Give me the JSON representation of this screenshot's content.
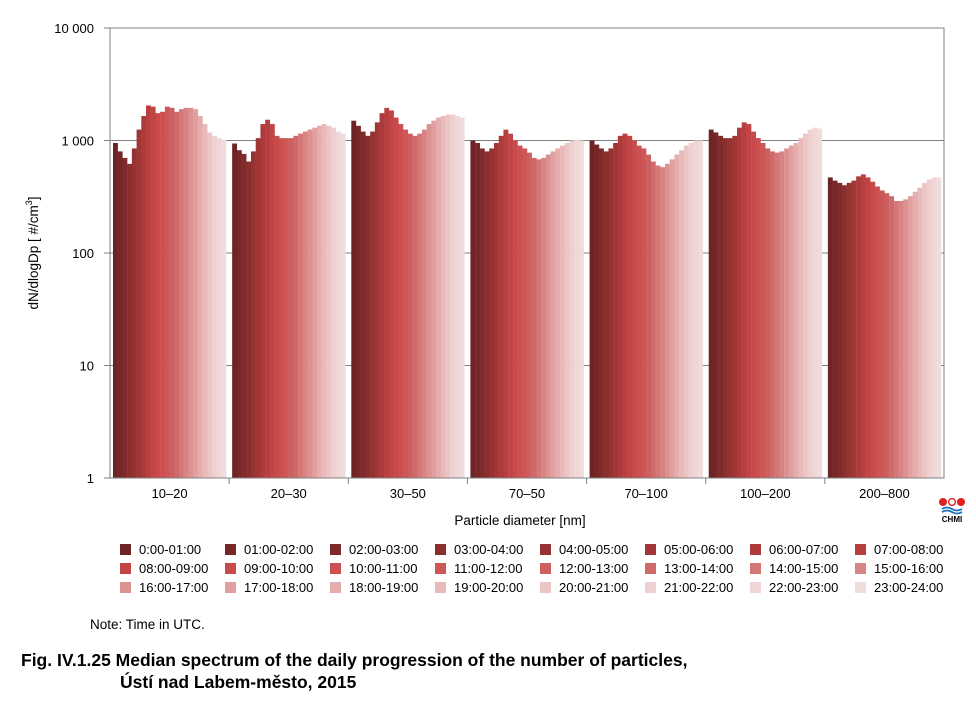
{
  "chart_data": {
    "type": "bar",
    "ylabel": "dN/dlogDp [ #/cm³]",
    "xlabel": "Particle diameter [nm]",
    "yscale": "log",
    "ylim": [
      1,
      10000
    ],
    "yticks": [
      1,
      10,
      100,
      1000,
      10000
    ],
    "ytick_labels": [
      "1",
      "10",
      "100",
      "1 000",
      "10 000"
    ],
    "grid": "horizontal",
    "legend_position": "bottom",
    "categories": [
      "10–20",
      "20–30",
      "30–50",
      "70–50",
      "70–100",
      "100–200",
      "200–800"
    ],
    "series_names": [
      "0:00-01:00",
      "01:00-02:00",
      "02:00-03:00",
      "03:00-04:00",
      "04:00-05:00",
      "05:00-06:00",
      "06:00-07:00",
      "07:00-08:00",
      "08:00-09:00",
      "09:00-10:00",
      "10:00-11:00",
      "11:00-12:00",
      "12:00-13:00",
      "13:00-14:00",
      "14:00-15:00",
      "15:00-16:00",
      "16:00-17:00",
      "17:00-18:00",
      "18:00-19:00",
      "19:00-20:00",
      "20:00-21:00",
      "21:00-22:00",
      "22:00-23:00",
      "23:00-24:00"
    ],
    "series_colors": [
      "#6e2424",
      "#772727",
      "#802b2b",
      "#8a2e2e",
      "#953232",
      "#a03636",
      "#ad3b3b",
      "#b83f3f",
      "#c24444",
      "#c84a4a",
      "#cd4f4f",
      "#cd5757",
      "#cc5f5f",
      "#d06a6a",
      "#d57777",
      "#d98484",
      "#dd9292",
      "#e19f9f",
      "#e5adad",
      "#e9baba",
      "#ecc5c5",
      "#efd0d0",
      "#f0d7d7",
      "#efdcdc"
    ],
    "values": [
      [
        950,
        800,
        700,
        620,
        850,
        1250,
        1650,
        2050,
        2000,
        1750,
        1800,
        2000,
        1950,
        1800,
        1900,
        1950,
        1950,
        1900,
        1650,
        1400,
        1180,
        1100,
        1050,
        1020
      ],
      [
        940,
        820,
        760,
        650,
        800,
        1050,
        1400,
        1530,
        1400,
        1100,
        1050,
        1050,
        1050,
        1100,
        1150,
        1200,
        1250,
        1300,
        1350,
        1400,
        1350,
        1300,
        1200,
        1150
      ],
      [
        1500,
        1350,
        1200,
        1100,
        1200,
        1450,
        1750,
        1950,
        1850,
        1600,
        1400,
        1250,
        1150,
        1100,
        1150,
        1250,
        1400,
        1500,
        1600,
        1650,
        1700,
        1700,
        1650,
        1600
      ],
      [
        1000,
        950,
        850,
        800,
        850,
        950,
        1100,
        1250,
        1150,
        1000,
        900,
        850,
        780,
        700,
        680,
        700,
        750,
        800,
        850,
        900,
        950,
        1000,
        1020,
        1000
      ],
      [
        1000,
        920,
        850,
        800,
        850,
        950,
        1100,
        1150,
        1100,
        1000,
        900,
        850,
        750,
        650,
        600,
        580,
        620,
        680,
        750,
        820,
        900,
        950,
        1000,
        1000
      ],
      [
        1250,
        1180,
        1100,
        1050,
        1050,
        1100,
        1300,
        1450,
        1400,
        1200,
        1050,
        950,
        850,
        800,
        780,
        800,
        850,
        900,
        950,
        1050,
        1150,
        1250,
        1300,
        1280
      ],
      [
        470,
        440,
        420,
        400,
        420,
        440,
        480,
        500,
        470,
        430,
        390,
        360,
        340,
        320,
        290,
        290,
        300,
        320,
        350,
        380,
        420,
        450,
        470,
        470
      ]
    ]
  },
  "legend": {
    "items": [
      "0:00-01:00",
      "01:00-02:00",
      "02:00-03:00",
      "03:00-04:00",
      "04:00-05:00",
      "05:00-06:00",
      "06:00-07:00",
      "07:00-08:00",
      "08:00-09:00",
      "09:00-10:00",
      "10:00-11:00",
      "11:00-12:00",
      "12:00-13:00",
      "13:00-14:00",
      "14:00-15:00",
      "15:00-16:00",
      "16:00-17:00",
      "17:00-18:00",
      "18:00-19:00",
      "19:00-20:00",
      "20:00-21:00",
      "21:00-22:00",
      "22:00-23:00",
      "23:00-24:00"
    ]
  },
  "note": "Note: Time in UTC.",
  "caption": {
    "line1": "Fig. IV.1.25 Median spectrum of the daily progression of the number of particles,",
    "line2": "Ústí nad Labem-město, 2015"
  },
  "logo": {
    "text": "CHMI",
    "icon": "chmi-logo-icon",
    "colors": [
      "#e02020",
      "#1a6fc0"
    ]
  }
}
